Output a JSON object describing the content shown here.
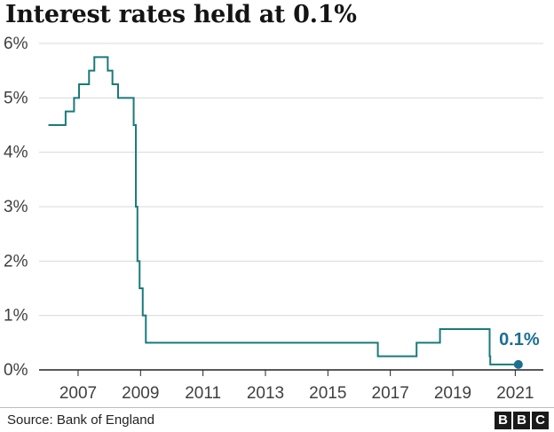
{
  "title": "Interest rates held at 0.1%",
  "source": "Source: Bank of England",
  "logo_letters": [
    "B",
    "B",
    "C"
  ],
  "colors": {
    "line": "#1a7a7a",
    "callout": "#1d6e92",
    "grid": "#d9d9d9",
    "axis": "#222222"
  },
  "chart_data": {
    "type": "line",
    "title": "Interest rates held at 0.1%",
    "xlabel": "",
    "ylabel": "",
    "xlim": [
      2005.75,
      2021.9
    ],
    "ylim": [
      0,
      6
    ],
    "x_ticks": [
      2007,
      2009,
      2011,
      2013,
      2015,
      2017,
      2019,
      2021
    ],
    "y_ticks": [
      0,
      1,
      2,
      3,
      4,
      5,
      6
    ],
    "y_tick_labels": [
      "0%",
      "1%",
      "2%",
      "3%",
      "4%",
      "5%",
      "6%"
    ],
    "grid": "horizontal",
    "series": [
      {
        "step": "post",
        "x": [
          2006.05,
          2006.6,
          2006.87,
          2007.03,
          2007.35,
          2007.52,
          2007.95,
          2008.1,
          2008.28,
          2008.78,
          2008.85,
          2008.9,
          2008.97,
          2009.07,
          2009.17,
          2016.6,
          2017.84,
          2018.59,
          2020.18,
          2020.2,
          2021.1
        ],
        "y": [
          4.5,
          4.75,
          5.0,
          5.25,
          5.5,
          5.75,
          5.5,
          5.25,
          5.0,
          4.5,
          3.0,
          2.0,
          1.5,
          1.0,
          0.5,
          0.25,
          0.5,
          0.75,
          0.25,
          0.1,
          0.1
        ]
      }
    ],
    "end_point": {
      "x": 2021.1,
      "y": 0.1
    },
    "annotation": "0.1%"
  }
}
